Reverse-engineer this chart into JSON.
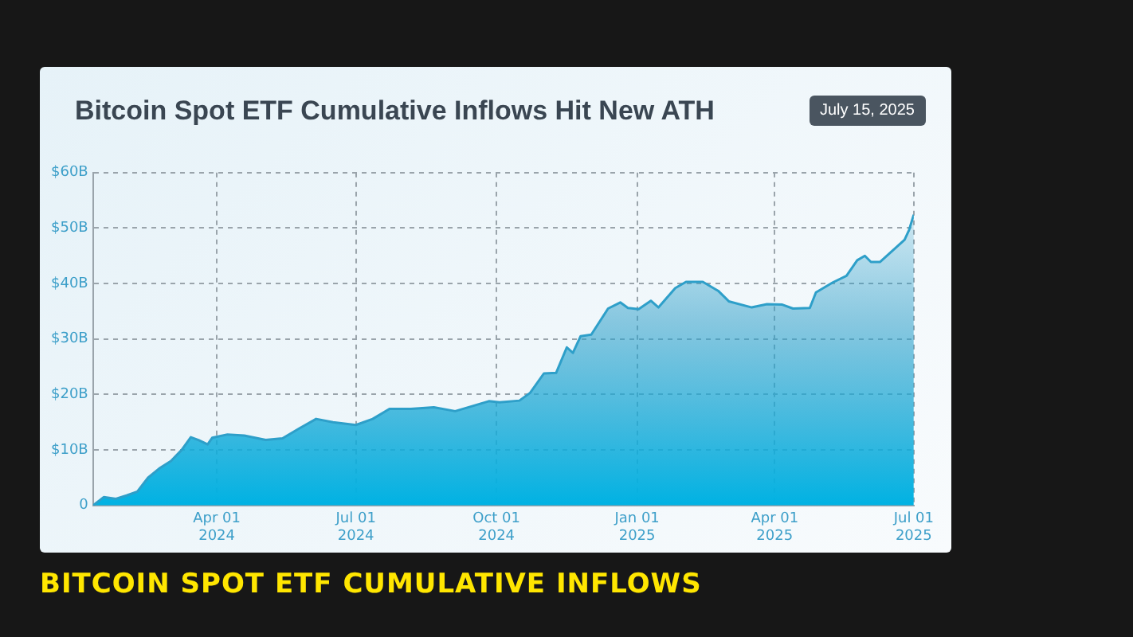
{
  "chart_data": {
    "type": "area",
    "title": "Bitcoin Spot ETF Cumulative Inflows Hit New ATH",
    "subtitle": "July 15, 2025",
    "annotations": [
      "BITCOIN SPOT ETF CUMULATIVE INFLOWS"
    ],
    "x": [
      "2024-01-11",
      "2024-01-18",
      "2024-01-26",
      "2024-02-02",
      "2024-02-09",
      "2024-02-16",
      "2024-02-24",
      "2024-03-02",
      "2024-03-09",
      "2024-03-15",
      "2024-03-20",
      "2024-03-26",
      "2024-03-29",
      "2024-04-08",
      "2024-04-19",
      "2024-05-03",
      "2024-05-14",
      "2024-05-25",
      "2024-06-05",
      "2024-06-16",
      "2024-07-01",
      "2024-07-12",
      "2024-07-23",
      "2024-08-06",
      "2024-08-21",
      "2024-09-04",
      "2024-09-15",
      "2024-09-26",
      "2024-10-03",
      "2024-10-16",
      "2024-10-23",
      "2024-11-01",
      "2024-11-09",
      "2024-11-16",
      "2024-11-20",
      "2024-11-25",
      "2024-12-02",
      "2024-12-13",
      "2024-12-21",
      "2024-12-26",
      "2025-01-02",
      "2025-01-10",
      "2025-01-15",
      "2025-01-26",
      "2025-02-02",
      "2025-02-13",
      "2025-02-23",
      "2025-03-02",
      "2025-03-17",
      "2025-03-27",
      "2025-04-06",
      "2025-04-13",
      "2025-04-24",
      "2025-04-28",
      "2025-05-09",
      "2025-05-18",
      "2025-05-25",
      "2025-05-30",
      "2025-06-03",
      "2025-06-09",
      "2025-06-25",
      "2025-06-28",
      "2025-07-01"
    ],
    "series": [
      {
        "color": "#2e9fc9",
        "values": [
          0,
          1.5,
          1.2,
          1.8,
          2.5,
          5.0,
          6.8,
          8.0,
          10.0,
          12.3,
          11.8,
          11.0,
          12.2,
          12.8,
          12.6,
          11.8,
          12.1,
          13.9,
          15.6,
          15.0,
          14.5,
          15.6,
          17.4,
          17.4,
          17.7,
          17.0,
          17.9,
          18.8,
          18.6,
          18.9,
          20.3,
          23.8,
          23.9,
          28.5,
          27.5,
          30.5,
          30.8,
          35.5,
          36.6,
          35.6,
          35.4,
          36.9,
          35.7,
          39.2,
          40.3,
          40.3,
          38.7,
          36.8,
          35.7,
          36.3,
          36.2,
          35.5,
          35.6,
          38.4,
          40.2,
          41.4,
          44.2,
          45.0,
          43.9,
          43.9,
          47.9,
          49.7,
          52.4
        ]
      }
    ],
    "xlim": [
      "2024-01-11",
      "2025-07-01"
    ],
    "xticks": [
      {
        "value": "2024-04-01",
        "label": "Apr 01\n2024"
      },
      {
        "value": "2024-07-01",
        "label": "Jul 01\n2024"
      },
      {
        "value": "2024-10-01",
        "label": "Oct 01\n2024"
      },
      {
        "value": "2025-01-01",
        "label": "Jan 01\n2025"
      },
      {
        "value": "2025-04-01",
        "label": "Apr 01\n2025"
      },
      {
        "value": "2025-07-01",
        "label": "Jul 01\n2025"
      }
    ],
    "ylim": [
      0,
      60
    ],
    "yticks": [
      0,
      {
        "value": 10,
        "label": "$10B"
      },
      {
        "value": 20,
        "label": "$20B"
      },
      {
        "value": 30,
        "label": "$30B"
      },
      {
        "value": 40,
        "label": "$40B"
      },
      {
        "value": 50,
        "label": "$50B"
      },
      {
        "value": 60,
        "label": "$60B"
      }
    ],
    "grid": true,
    "line_style": "solid",
    "marker": "none"
  }
}
